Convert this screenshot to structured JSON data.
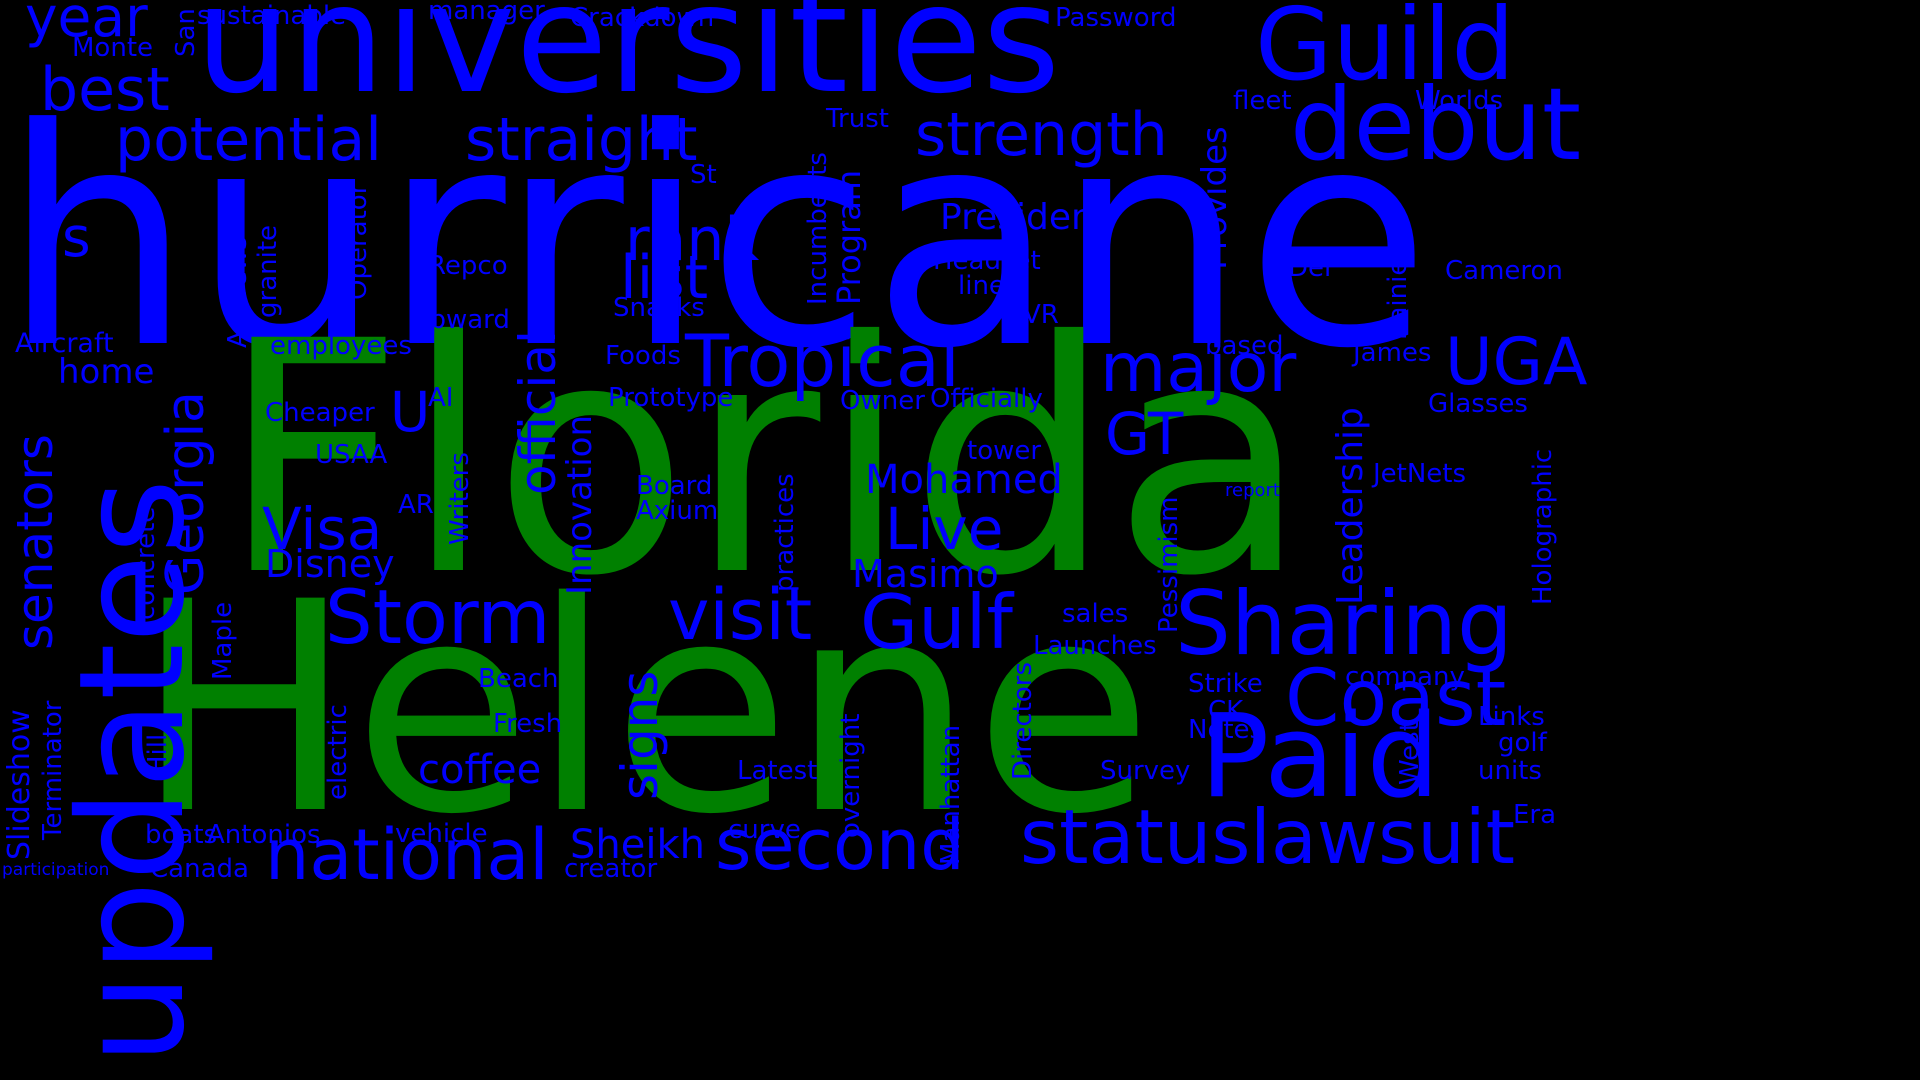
{
  "colors": {
    "background": "#000000",
    "primary": "#0000FF",
    "highlight": "#008000"
  },
  "words": [
    {
      "id": "hurricane",
      "text": "hurricane",
      "color": "primary"
    },
    {
      "id": "florida",
      "text": "Florida",
      "color": "highlight"
    },
    {
      "id": "helene",
      "text": "Helene",
      "color": "highlight"
    },
    {
      "id": "universities",
      "text": "universities",
      "color": "primary"
    },
    {
      "id": "updates",
      "text": "updates",
      "color": "primary"
    },
    {
      "id": "guild",
      "text": "Guild",
      "color": "primary"
    },
    {
      "id": "debut",
      "text": "debut",
      "color": "primary"
    },
    {
      "id": "paid",
      "text": "Paid",
      "color": "primary"
    },
    {
      "id": "sharing",
      "text": "Sharing",
      "color": "primary"
    },
    {
      "id": "coast",
      "text": "Coast",
      "color": "primary"
    },
    {
      "id": "status",
      "text": "status",
      "color": "primary"
    },
    {
      "id": "lawsuit",
      "text": "lawsuit",
      "color": "primary"
    },
    {
      "id": "national",
      "text": "national",
      "color": "primary"
    },
    {
      "id": "second",
      "text": "second",
      "color": "primary"
    },
    {
      "id": "storm",
      "text": "Storm",
      "color": "primary"
    },
    {
      "id": "gulf",
      "text": "Gulf",
      "color": "primary"
    },
    {
      "id": "visit",
      "text": "visit",
      "color": "primary"
    },
    {
      "id": "tropical",
      "text": "Tropical",
      "color": "primary"
    },
    {
      "id": "major",
      "text": "major",
      "color": "primary"
    },
    {
      "id": "uga",
      "text": "UGA",
      "color": "primary"
    },
    {
      "id": "potential",
      "text": "potential",
      "color": "primary"
    },
    {
      "id": "straight",
      "text": "straight",
      "color": "primary"
    },
    {
      "id": "strength",
      "text": "strength",
      "color": "primary"
    },
    {
      "id": "best",
      "text": "best",
      "color": "primary"
    },
    {
      "id": "year",
      "text": "year",
      "color": "primary"
    },
    {
      "id": "rank",
      "text": "rank",
      "color": "primary"
    },
    {
      "id": "list",
      "text": "list",
      "color": "primary"
    },
    {
      "id": "visa",
      "text": "Visa",
      "color": "primary"
    },
    {
      "id": "live",
      "text": "Live",
      "color": "primary"
    },
    {
      "id": "gt",
      "text": "GT",
      "color": "primary"
    },
    {
      "id": "u",
      "text": "U",
      "color": "primary"
    },
    {
      "id": "s",
      "text": "s",
      "color": "primary"
    },
    {
      "id": "coffee",
      "text": "coffee",
      "color": "primary"
    },
    {
      "id": "sheikh",
      "text": "Sheikh",
      "color": "primary"
    },
    {
      "id": "mohamed",
      "text": "Mohamed",
      "color": "primary"
    },
    {
      "id": "masimo",
      "text": "Masimo",
      "color": "primary"
    },
    {
      "id": "disney",
      "text": "Disney",
      "color": "primary"
    },
    {
      "id": "president",
      "text": "President",
      "color": "primary"
    },
    {
      "id": "georgia",
      "text": "Georgia",
      "color": "primary"
    },
    {
      "id": "senators",
      "text": "senators",
      "color": "primary"
    },
    {
      "id": "official",
      "text": "official",
      "color": "primary"
    },
    {
      "id": "signs",
      "text": "signs",
      "color": "primary"
    },
    {
      "id": "leadership",
      "text": "Leadership",
      "color": "primary"
    },
    {
      "id": "provides",
      "text": "Provides",
      "color": "primary"
    },
    {
      "id": "program",
      "text": "Program",
      "color": "primary"
    },
    {
      "id": "innovation",
      "text": "Innovation",
      "color": "primary"
    },
    {
      "id": "slideshow",
      "text": "Slideshow",
      "color": "primary"
    },
    {
      "id": "home",
      "text": "home",
      "color": "primary"
    },
    {
      "id": "aircraft",
      "text": "Aircraft",
      "color": "primary"
    },
    {
      "id": "employees",
      "text": "employees",
      "color": "primary"
    },
    {
      "id": "cheaper",
      "text": "Cheaper",
      "color": "primary"
    },
    {
      "id": "usaa",
      "text": "USAA",
      "color": "primary"
    },
    {
      "id": "ai",
      "text": "AI",
      "color": "primary"
    },
    {
      "id": "ar",
      "text": "AR",
      "color": "primary"
    },
    {
      "id": "prototype",
      "text": "Prototype",
      "color": "primary"
    },
    {
      "id": "foods",
      "text": "Foods",
      "color": "primary"
    },
    {
      "id": "snacks",
      "text": "Snacks",
      "color": "primary"
    },
    {
      "id": "repco",
      "text": "Repco",
      "color": "primary"
    },
    {
      "id": "upward",
      "text": "upward",
      "color": "primary"
    },
    {
      "id": "headset",
      "text": "Headset",
      "color": "primary"
    },
    {
      "id": "line",
      "text": "line",
      "color": "primary"
    },
    {
      "id": "vr",
      "text": "VR",
      "color": "primary"
    },
    {
      "id": "del",
      "text": "Del",
      "color": "primary"
    },
    {
      "id": "cameron",
      "text": "Cameron",
      "color": "primary"
    },
    {
      "id": "based",
      "text": "based",
      "color": "primary"
    },
    {
      "id": "james",
      "text": "James",
      "color": "primary"
    },
    {
      "id": "owner",
      "text": "Owner",
      "color": "primary"
    },
    {
      "id": "officially",
      "text": "Officially",
      "color": "primary"
    },
    {
      "id": "glasses",
      "text": "Glasses",
      "color": "primary"
    },
    {
      "id": "tower",
      "text": "tower",
      "color": "primary"
    },
    {
      "id": "jetnets",
      "text": "JetNets",
      "color": "primary"
    },
    {
      "id": "board",
      "text": "Board",
      "color": "primary"
    },
    {
      "id": "axium",
      "text": "Axium",
      "color": "primary"
    },
    {
      "id": "report",
      "text": "report",
      "color": "primary"
    },
    {
      "id": "sales",
      "text": "sales",
      "color": "primary"
    },
    {
      "id": "launches",
      "text": "Launches",
      "color": "primary"
    },
    {
      "id": "company",
      "text": "company",
      "color": "primary"
    },
    {
      "id": "strike",
      "text": "Strike",
      "color": "primary"
    },
    {
      "id": "ck",
      "text": "CK",
      "color": "primary"
    },
    {
      "id": "notes",
      "text": "Notes",
      "color": "primary"
    },
    {
      "id": "links",
      "text": "Links",
      "color": "primary"
    },
    {
      "id": "golf",
      "text": "golf",
      "color": "primary"
    },
    {
      "id": "units",
      "text": "units",
      "color": "primary"
    },
    {
      "id": "era",
      "text": "Era",
      "color": "primary"
    },
    {
      "id": "survey",
      "text": "Survey",
      "color": "primary"
    },
    {
      "id": "latest",
      "text": "Latest",
      "color": "primary"
    },
    {
      "id": "curve",
      "text": "curve",
      "color": "primary"
    },
    {
      "id": "beach",
      "text": "Beach",
      "color": "primary"
    },
    {
      "id": "fresh",
      "text": "Fresh",
      "color": "primary"
    },
    {
      "id": "vehicle",
      "text": "vehicle",
      "color": "primary"
    },
    {
      "id": "antonios",
      "text": "Antonios",
      "color": "primary"
    },
    {
      "id": "boats",
      "text": "boats",
      "color": "primary"
    },
    {
      "id": "canada",
      "text": "Canada",
      "color": "primary"
    },
    {
      "id": "creator",
      "text": "creator",
      "color": "primary"
    },
    {
      "id": "participation",
      "text": "participation",
      "color": "primary"
    },
    {
      "id": "sustainable",
      "text": "sustainable",
      "color": "primary"
    },
    {
      "id": "manager",
      "text": "manager",
      "color": "primary"
    },
    {
      "id": "crackdown",
      "text": "Crackdown",
      "color": "primary"
    },
    {
      "id": "password",
      "text": "Password",
      "color": "primary"
    },
    {
      "id": "monte",
      "text": "Monte",
      "color": "primary"
    },
    {
      "id": "fleet",
      "text": "fleet",
      "color": "primary"
    },
    {
      "id": "worlds",
      "text": "Worlds",
      "color": "primary"
    },
    {
      "id": "trust",
      "text": "Trust",
      "color": "primary"
    },
    {
      "id": "st",
      "text": "St",
      "color": "primary"
    },
    {
      "id": "san",
      "text": "San",
      "color": "primary"
    },
    {
      "id": "andrews",
      "text": "Andrews",
      "color": "primary"
    },
    {
      "id": "granite",
      "text": "granite",
      "color": "primary"
    },
    {
      "id": "operator",
      "text": "Operator",
      "color": "primary"
    },
    {
      "id": "incumbents",
      "text": "Incumbents",
      "color": "primary"
    },
    {
      "id": "rainier",
      "text": "Rainier",
      "color": "primary"
    },
    {
      "id": "writers",
      "text": "Writers",
      "color": "primary"
    },
    {
      "id": "concrete",
      "text": "concrete",
      "color": "primary"
    },
    {
      "id": "maple",
      "text": "Maple",
      "color": "primary"
    },
    {
      "id": "terminator",
      "text": "Terminator",
      "color": "primary"
    },
    {
      "id": "hill",
      "text": "Hill",
      "color": "primary"
    },
    {
      "id": "electric",
      "text": "electric",
      "color": "primary"
    },
    {
      "id": "practices",
      "text": "practices",
      "color": "primary"
    },
    {
      "id": "overnight",
      "text": "overnight",
      "color": "primary"
    },
    {
      "id": "manhattan",
      "text": "Manhattan",
      "color": "primary"
    },
    {
      "id": "directors",
      "text": "Directors",
      "color": "primary"
    },
    {
      "id": "pessimism",
      "text": "Pessimism",
      "color": "primary"
    },
    {
      "id": "holographic",
      "text": "Holographic",
      "color": "primary"
    },
    {
      "id": "west",
      "text": "West",
      "color": "primary"
    }
  ]
}
